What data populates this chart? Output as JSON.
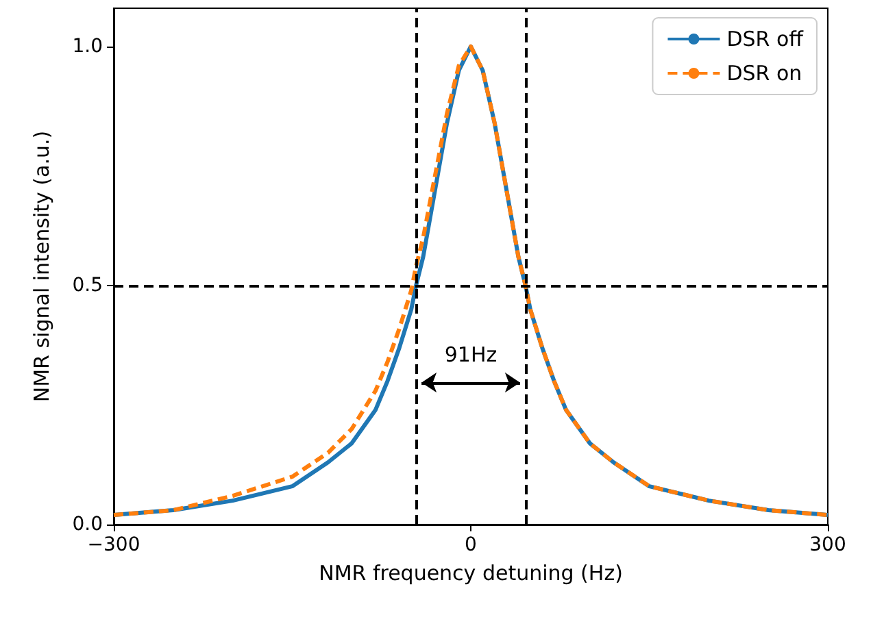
{
  "chart_data": {
    "type": "line",
    "xlabel": "NMR frequency detuning (Hz)",
    "ylabel": "NMR signal intensity (a.u.)",
    "x": [
      -300,
      -250,
      -200,
      -150,
      -120,
      -100,
      -80,
      -70,
      -60,
      -50,
      -46,
      -40,
      -30,
      -20,
      -10,
      0,
      10,
      20,
      30,
      40,
      46,
      50,
      60,
      70,
      80,
      100,
      120,
      150,
      200,
      250,
      300
    ],
    "series": [
      {
        "name": "DSR off",
        "color": "#1f77b4",
        "line_style": "solid",
        "values": [
          0.02,
          0.03,
          0.05,
          0.08,
          0.13,
          0.17,
          0.24,
          0.3,
          0.37,
          0.45,
          0.5,
          0.56,
          0.7,
          0.84,
          0.95,
          1.0,
          0.95,
          0.84,
          0.7,
          0.56,
          0.5,
          0.45,
          0.37,
          0.3,
          0.24,
          0.17,
          0.13,
          0.08,
          0.05,
          0.03,
          0.02
        ]
      },
      {
        "name": "DSR on",
        "color": "#ff7f0e",
        "line_style": "dashed",
        "values": [
          0.02,
          0.03,
          0.06,
          0.1,
          0.15,
          0.2,
          0.28,
          0.34,
          0.41,
          0.49,
          0.54,
          0.6,
          0.73,
          0.86,
          0.96,
          1.0,
          0.95,
          0.84,
          0.7,
          0.56,
          0.5,
          0.45,
          0.37,
          0.3,
          0.24,
          0.17,
          0.13,
          0.08,
          0.05,
          0.03,
          0.02
        ]
      }
    ],
    "xlim": [
      -300,
      300
    ],
    "xticks": [
      {
        "value": -300,
        "label": "−300"
      },
      0,
      300
    ],
    "ylim": [
      0,
      1.08
    ],
    "yticks": [
      {
        "value": 0,
        "label": "0.0"
      },
      {
        "value": 0.5,
        "label": "0.5"
      },
      {
        "value": 1,
        "label": "1.0"
      }
    ],
    "ref_lines": [
      {
        "axis": "x",
        "value": -46,
        "color": "#000000",
        "line_style": "dashed"
      },
      {
        "axis": "x",
        "value": 46,
        "color": "#000000",
        "line_style": "dashed"
      },
      {
        "axis": "y",
        "value": 0.5,
        "color": "#000000",
        "line_style": "dashed"
      }
    ],
    "annotations": [
      "91Hz"
    ],
    "grid": false,
    "legend": "top right",
    "marker": "none"
  }
}
